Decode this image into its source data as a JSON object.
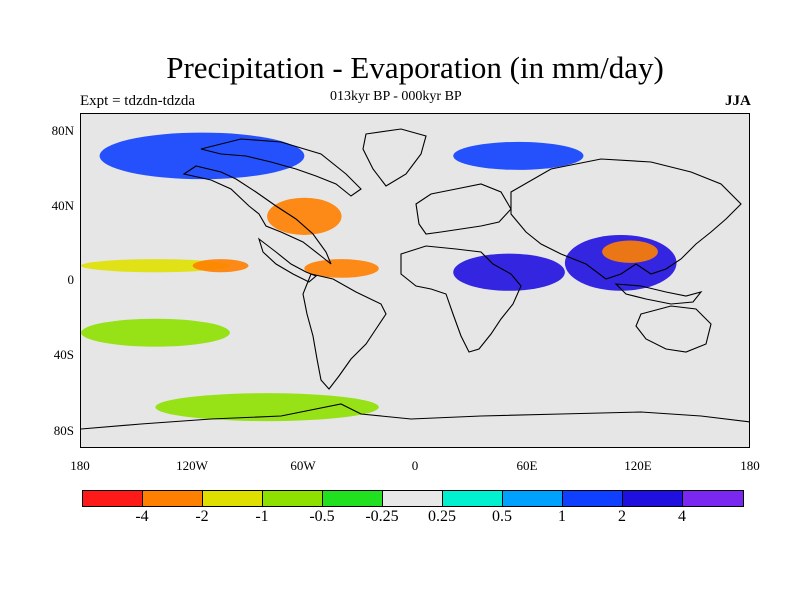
{
  "title": "Precipitation - Evaporation (in mm/day)",
  "experiment": "Expt = tdzdn-tdzda",
  "period": "013kyr BP - 000kyr BP",
  "season": "JJA",
  "lat_labels": [
    "80N",
    "40N",
    "0",
    "40S",
    "80S"
  ],
  "lon_labels": [
    "180",
    "120W",
    "60W",
    "0",
    "60E",
    "120E",
    "180"
  ],
  "colorbar": {
    "colors": [
      "#ff1a1a",
      "#ff8000",
      "#e0e000",
      "#8ee000",
      "#20e020",
      "#e8e8e8",
      "#00f0d0",
      "#00a0ff",
      "#1040ff",
      "#2010e0",
      "#7a28f0"
    ],
    "labels": [
      "-4",
      "-2",
      "-1",
      "-0.5",
      "-0.25",
      "0.25",
      "0.5",
      "1",
      "2",
      "4"
    ]
  },
  "chart_data": {
    "type": "heatmap",
    "title": "Precipitation - Evaporation (in mm/day)",
    "subtitle": "013kyr BP - 000kyr BP",
    "variable": "Precipitation - Evaporation",
    "units": "mm/day",
    "xlim": [
      -180,
      180
    ],
    "ylim": [
      -90,
      90
    ],
    "color_levels": [
      -4,
      -2,
      -1,
      -0.5,
      -0.25,
      0.25,
      0.5,
      1,
      2,
      4
    ],
    "regions": [
      {
        "lon": [
          -180,
          -100
        ],
        "lat": [
          5,
          12
        ],
        "value": -1.5
      },
      {
        "lon": [
          -120,
          -90
        ],
        "lat": [
          5,
          12
        ],
        "value": -3
      },
      {
        "lon": [
          -60,
          -20
        ],
        "lat": [
          2,
          12
        ],
        "value": -2.5
      },
      {
        "lon": [
          20,
          80
        ],
        "lat": [
          -5,
          15
        ],
        "value": 2
      },
      {
        "lon": [
          80,
          140
        ],
        "lat": [
          -5,
          25
        ],
        "value": 3
      },
      {
        "lon": [
          100,
          130
        ],
        "lat": [
          10,
          22
        ],
        "value": -3
      },
      {
        "lon": [
          -170,
          -60
        ],
        "lat": [
          55,
          80
        ],
        "value": 1.5
      },
      {
        "lon": [
          20,
          90
        ],
        "lat": [
          60,
          75
        ],
        "value": 1.5
      },
      {
        "lon": [
          -80,
          -40
        ],
        "lat": [
          25,
          45
        ],
        "value": -2.5
      },
      {
        "lon": [
          -180,
          -100
        ],
        "lat": [
          -35,
          -20
        ],
        "value": -0.8
      },
      {
        "lon": [
          -140,
          -20
        ],
        "lat": [
          -75,
          -60
        ],
        "value": -0.7
      }
    ]
  }
}
